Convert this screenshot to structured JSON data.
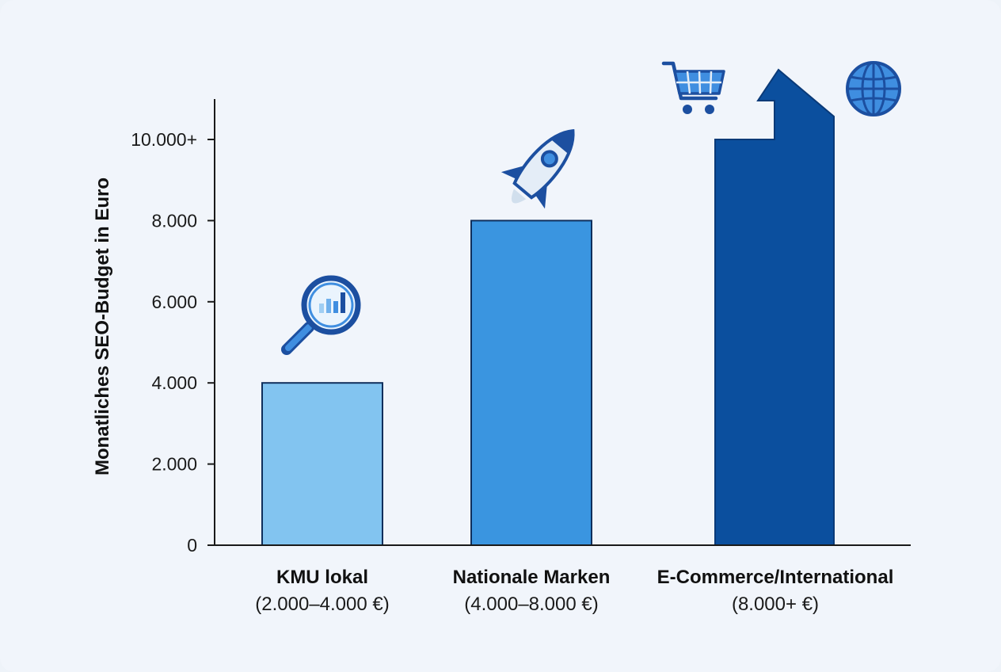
{
  "chart_data": {
    "type": "bar",
    "ylabel": "Monatliches SEO-Budget in Euro",
    "xlabel": "",
    "ylim": [
      0,
      10000
    ],
    "yticks": [
      {
        "value": 0,
        "label": "0"
      },
      {
        "value": 2000,
        "label": "2.000"
      },
      {
        "value": 4000,
        "label": "4.000"
      },
      {
        "value": 6000,
        "label": "6.000"
      },
      {
        "value": 8000,
        "label": "8.000"
      },
      {
        "value": 10000,
        "label": "10.000+"
      }
    ],
    "categories": [
      {
        "name": "KMU lokal",
        "range": "(2.000–4.000 €)",
        "value": 4000,
        "color": "#82c4f0",
        "icon": "magnifier-chart-icon"
      },
      {
        "name": "Nationale Marken",
        "range": "(4.000–8.000 €)",
        "value": 8000,
        "color": "#3a95e0",
        "icon": "rocket-icon"
      },
      {
        "name": "E-Commerce/International",
        "range": "(8.000+ €)",
        "value": 10000,
        "color": "#0b4f9e",
        "icon": "shopping-cart-icon",
        "extra_icon": "globe-icon",
        "open_ended": true
      }
    ],
    "grid": false,
    "legend": "none",
    "colors": {
      "axis": "#1a1a1a",
      "icon_dark": "#1c4fa0",
      "icon_mid": "#3f8ee0",
      "icon_light": "#cfe6fa"
    }
  }
}
